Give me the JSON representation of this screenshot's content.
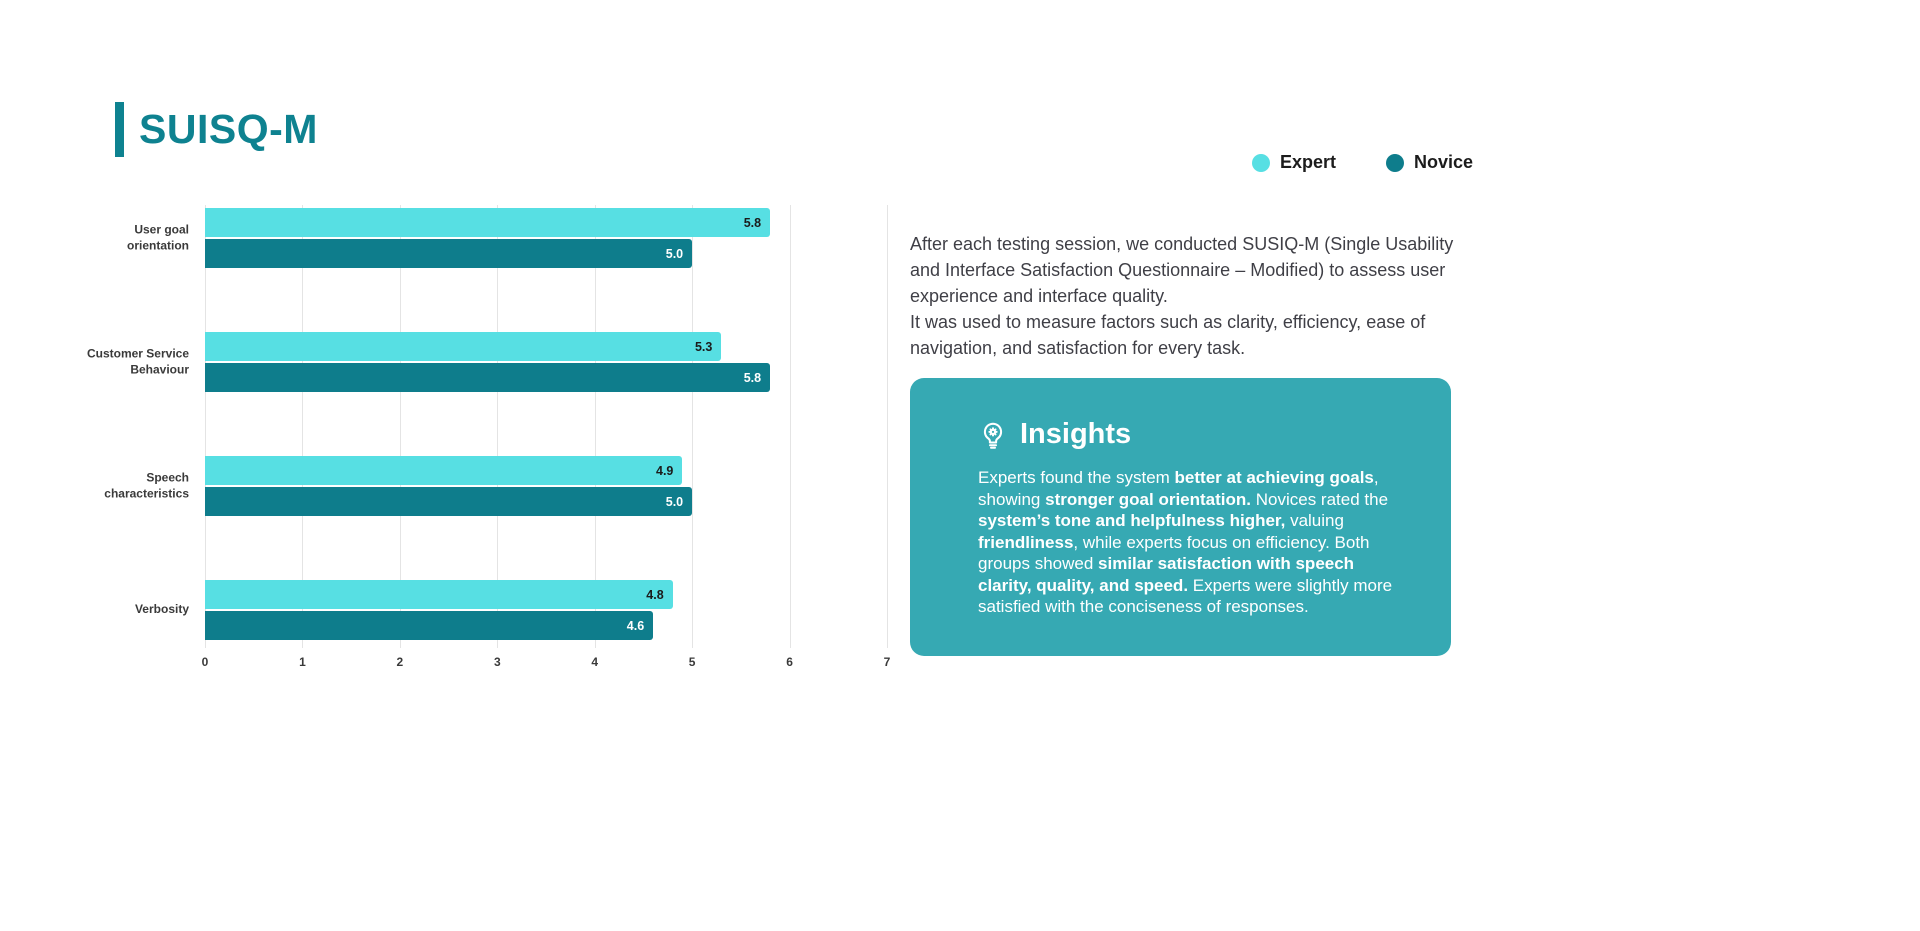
{
  "slide": {
    "title": "SUISQ-M"
  },
  "legend": {
    "items": [
      {
        "label": "Expert",
        "color": "#57DFE3"
      },
      {
        "label": "Novice",
        "color": "#0E7D8C"
      }
    ]
  },
  "description": {
    "paragraphs": [
      "After each testing session, we conducted SUSIQ-M (Single Usability and Interface Satisfaction Questionnaire – Modified) to assess user experience and interface quality.",
      "It was used to measure factors such as clarity, efficiency, ease of navigation, and satisfaction for every task."
    ]
  },
  "insights": {
    "heading": "Insights",
    "icon": "lightbulb-gear-icon",
    "background": "#36A9B3",
    "segments": [
      {
        "text": "Experts found the system ",
        "bold": false
      },
      {
        "text": "better at achieving goals",
        "bold": true
      },
      {
        "text": ", showing ",
        "bold": false
      },
      {
        "text": "stronger goal orientation.",
        "bold": true
      },
      {
        "text": " Novices rated the ",
        "bold": false
      },
      {
        "text": "system’s tone and helpfulness higher,",
        "bold": true
      },
      {
        "text": " valuing ",
        "bold": false
      },
      {
        "text": "friendliness",
        "bold": true
      },
      {
        "text": ", while experts focus on efficiency. Both groups showed ",
        "bold": false
      },
      {
        "text": "similar satisfaction with speech clarity, quality, and speed.",
        "bold": true
      },
      {
        "text": " Experts were slightly more satisfied with the conciseness of responses.",
        "bold": false
      }
    ]
  },
  "chart_data": {
    "type": "bar",
    "orientation": "horizontal",
    "title": "SUISQ-M",
    "categories": [
      "User goal orientation",
      "Customer Service Behaviour",
      "Speech characteristics",
      "Verbosity"
    ],
    "series": [
      {
        "name": "Expert",
        "color": "#57DFE3",
        "value_label_color": "#1b1b1b",
        "values": [
          5.8,
          5.3,
          4.9,
          4.8
        ]
      },
      {
        "name": "Novice",
        "color": "#0E7D8C",
        "value_label_color": "#ffffff",
        "values": [
          5.0,
          5.8,
          5.0,
          4.6
        ]
      }
    ],
    "xlabel": "",
    "ylabel": "",
    "xlim": [
      0,
      7
    ],
    "xticks": [
      0,
      1,
      2,
      3,
      4,
      5,
      6,
      7
    ],
    "grid": true,
    "legend_position": "top-right"
  }
}
